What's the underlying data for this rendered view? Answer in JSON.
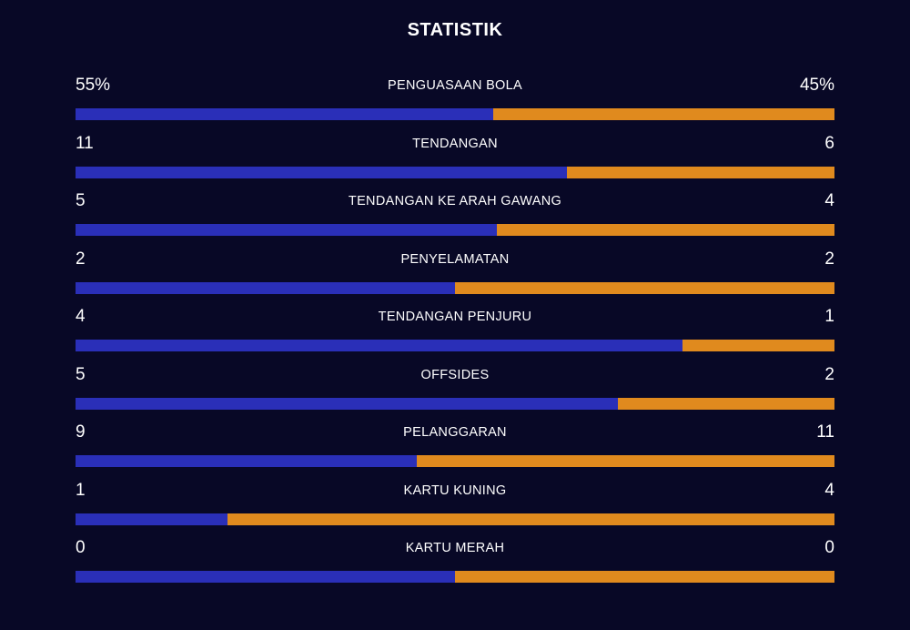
{
  "title": "STATISTIK",
  "colors": {
    "background": "#080826",
    "home": "#2a2fb8",
    "away": "#e08a1e"
  },
  "stats": [
    {
      "label": "PENGUASAAN BOLA",
      "home": "55%",
      "away": "45%",
      "home_value": 55,
      "away_value": 45
    },
    {
      "label": "TENDANGAN",
      "home": "11",
      "away": "6",
      "home_value": 11,
      "away_value": 6
    },
    {
      "label": "TENDANGAN KE ARAH GAWANG",
      "home": "5",
      "away": "4",
      "home_value": 5,
      "away_value": 4
    },
    {
      "label": "PENYELAMATAN",
      "home": "2",
      "away": "2",
      "home_value": 2,
      "away_value": 2
    },
    {
      "label": "TENDANGAN PENJURU",
      "home": "4",
      "away": "1",
      "home_value": 4,
      "away_value": 1
    },
    {
      "label": "OFFSIDES",
      "home": "5",
      "away": "2",
      "home_value": 5,
      "away_value": 2
    },
    {
      "label": "PELANGGARAN",
      "home": "9",
      "away": "11",
      "home_value": 9,
      "away_value": 11
    },
    {
      "label": "KARTU KUNING",
      "home": "1",
      "away": "4",
      "home_value": 1,
      "away_value": 4
    },
    {
      "label": "KARTU MERAH",
      "home": "0",
      "away": "0",
      "home_value": 0,
      "away_value": 0
    }
  ]
}
